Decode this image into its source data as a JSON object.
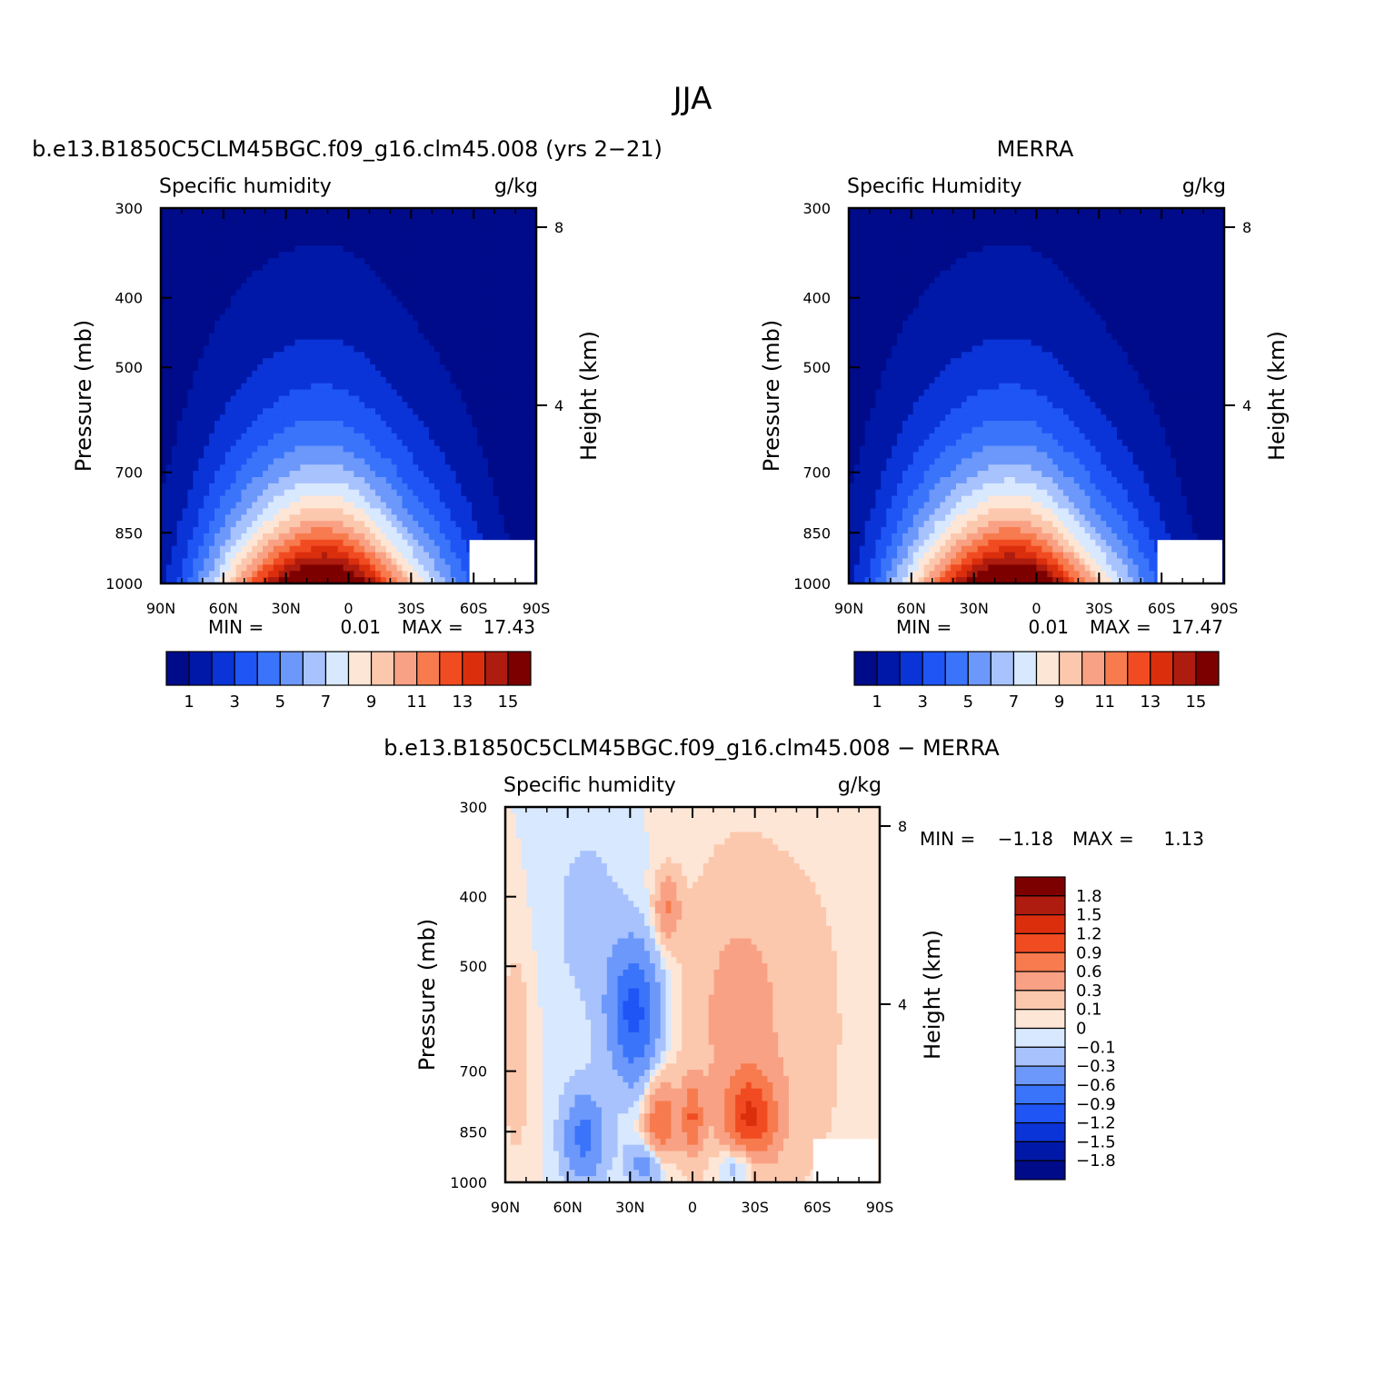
{
  "figure": {
    "title": "JJA"
  },
  "chart_data": [
    {
      "type": "heatmap",
      "title": "b.e13.B1850C5CLM45BGC.f09_g16.clm45.008 (yrs 2−21)",
      "left_label": "Specific humidity",
      "right_label": "g/kg",
      "ylabel": "Pressure (mb)",
      "y2label": "Height (km)",
      "x_ticks": [
        "90N",
        "60N",
        "30N",
        "0",
        "30S",
        "60S",
        "90S"
      ],
      "y_ticks": [
        "300",
        "400",
        "500",
        "700",
        "850",
        "1000"
      ],
      "y2_ticks": [
        "8",
        "4"
      ],
      "x_range": [
        90,
        -90
      ],
      "y_range": [
        1000,
        300
      ],
      "min_text": "MIN =",
      "min_value": "0.01",
      "max_text": "MAX =",
      "max_value": "17.43",
      "peak": {
        "lat": 10,
        "p": 1000,
        "value": 17.43
      },
      "levels": [
        1,
        2,
        3,
        4,
        5,
        6,
        7,
        8,
        9,
        10,
        11,
        12,
        13,
        14,
        15
      ],
      "colorbar_labels": [
        "1",
        "3",
        "5",
        "7",
        "9",
        "11",
        "13",
        "15"
      ]
    },
    {
      "type": "heatmap",
      "title": "MERRA",
      "left_label": "Specific Humidity",
      "right_label": "g/kg",
      "ylabel": "Pressure (mb)",
      "y2label": "Height (km)",
      "x_ticks": [
        "90N",
        "60N",
        "30N",
        "0",
        "30S",
        "60S",
        "90S"
      ],
      "y_ticks": [
        "300",
        "400",
        "500",
        "700",
        "850",
        "1000"
      ],
      "y2_ticks": [
        "8",
        "4"
      ],
      "x_range": [
        90,
        -90
      ],
      "y_range": [
        1000,
        300
      ],
      "min_text": "MIN =",
      "min_value": "0.01",
      "max_text": "MAX =",
      "max_value": "17.47",
      "peak": {
        "lat": 10,
        "p": 1000,
        "value": 17.47
      },
      "levels": [
        1,
        2,
        3,
        4,
        5,
        6,
        7,
        8,
        9,
        10,
        11,
        12,
        13,
        14,
        15
      ],
      "colorbar_labels": [
        "1",
        "3",
        "5",
        "7",
        "9",
        "11",
        "13",
        "15"
      ]
    },
    {
      "type": "heatmap",
      "title": "b.e13.B1850C5CLM45BGC.f09_g16.clm45.008 − MERRA",
      "left_label": "Specific humidity",
      "right_label": "g/kg",
      "ylabel": "Pressure (mb)",
      "y2label": "Height (km)",
      "x_ticks": [
        "90N",
        "60N",
        "30N",
        "0",
        "30S",
        "60S",
        "90S"
      ],
      "y_ticks": [
        "300",
        "400",
        "500",
        "700",
        "850",
        "1000"
      ],
      "y2_ticks": [
        "8",
        "4"
      ],
      "x_range": [
        90,
        -90
      ],
      "y_range": [
        1000,
        300
      ],
      "min_text": "MIN =",
      "min_value": "−1.18",
      "max_text": "MAX =",
      "max_value": "1.13",
      "levels": [
        -1.8,
        -1.5,
        -1.2,
        -0.9,
        -0.6,
        -0.3,
        -0.1,
        0,
        0.1,
        0.3,
        0.6,
        0.9,
        1.2,
        1.5,
        1.8
      ],
      "colorbar_labels": [
        "1.8",
        "1.5",
        "1.2",
        "0.9",
        "0.6",
        "0.3",
        "0.1",
        "0",
        "−0.1",
        "−0.3",
        "−0.6",
        "−0.9",
        "−1.2",
        "−1.5",
        "−1.8"
      ]
    }
  ],
  "colors": {
    "abs_scale": [
      "#000b8a",
      "#0018a8",
      "#0a34d8",
      "#1f55f5",
      "#3a74fa",
      "#6c98fb",
      "#a7c2fd",
      "#d8e8fe",
      "#fee6d6",
      "#fcc8ad",
      "#f9a184",
      "#f77b4e",
      "#f14b22",
      "#db2e0d",
      "#ad1c0e",
      "#7d0000"
    ],
    "diff_scale": [
      "#000b8a",
      "#0018a8",
      "#0a34d8",
      "#1f55f5",
      "#3a74fa",
      "#6c98fb",
      "#a7c2fd",
      "#d8e8fe",
      "#fee6d6",
      "#fcc8ad",
      "#f9a184",
      "#f77b4e",
      "#f14b22",
      "#db2e0d",
      "#ad1c0e",
      "#7d0000"
    ]
  }
}
